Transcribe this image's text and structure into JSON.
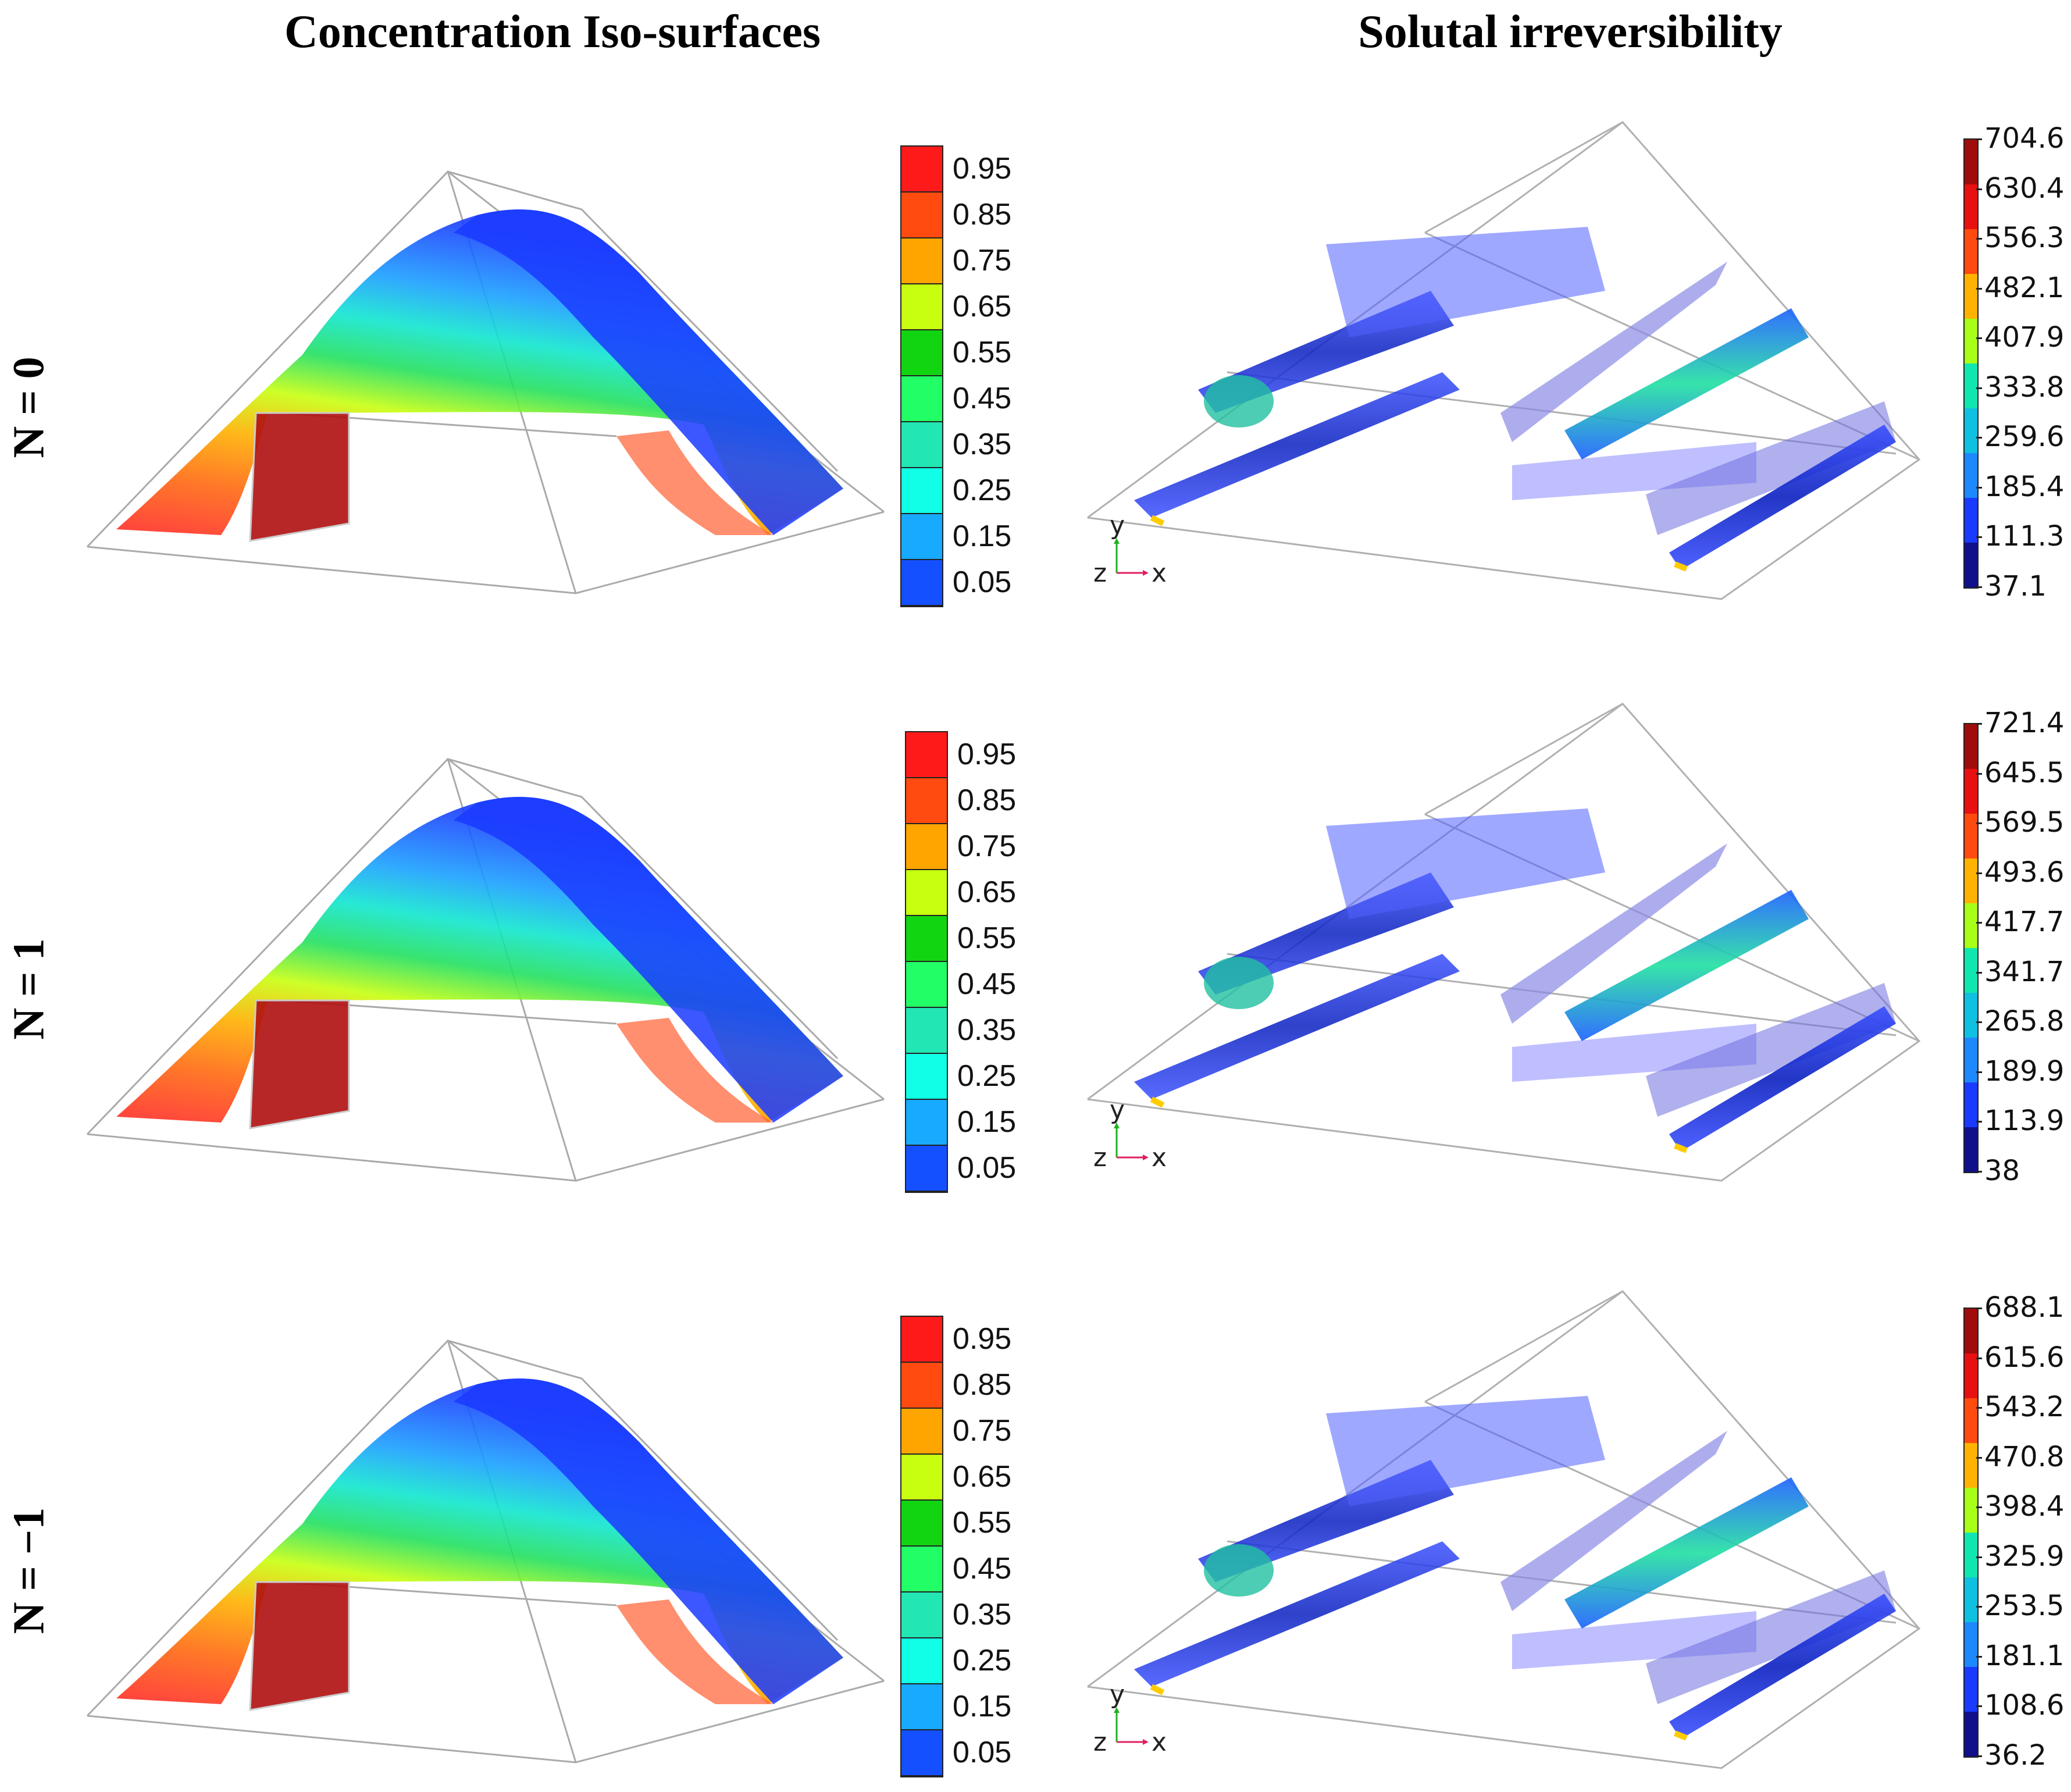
{
  "titles": {
    "left": "Concentration Iso-surfaces",
    "right": "Solutal irreversibility"
  },
  "rows": [
    {
      "label": "N = 0"
    },
    {
      "label": "N = 1"
    },
    {
      "label": "N = −1"
    }
  ],
  "concentration_colorbar": {
    "labels": [
      "0.95",
      "0.85",
      "0.75",
      "0.65",
      "0.55",
      "0.45",
      "0.35",
      "0.25",
      "0.15",
      "0.05"
    ],
    "colors": [
      "#ff1a1a",
      "#ff4a10",
      "#ffa500",
      "#c8ff10",
      "#12d512",
      "#22ff66",
      "#22e6b3",
      "#10ffe6",
      "#18aaff",
      "#1450ff",
      "#0a1aff"
    ]
  },
  "irreversibility_colorbars": [
    {
      "labels": [
        "704.6",
        "630.4",
        "556.3",
        "482.1",
        "407.9",
        "333.8",
        "259.6",
        "185.4",
        "111.3",
        "37.1"
      ]
    },
    {
      "labels": [
        "721.4",
        "645.5",
        "569.5",
        "493.6",
        "417.7",
        "341.7",
        "265.8",
        "189.9",
        "113.9",
        "38"
      ]
    },
    {
      "labels": [
        "688.1",
        "615.6",
        "543.2",
        "470.8",
        "398.4",
        "325.9",
        "253.5",
        "181.1",
        "108.6",
        "36.2"
      ]
    }
  ],
  "irreversibility_colors": [
    "#a00c0c",
    "#e81010",
    "#ff4a10",
    "#ffb300",
    "#a8ff18",
    "#10e6b0",
    "#10c0e0",
    "#1e88ff",
    "#1a3aff",
    "#10108a"
  ],
  "axis_indicator": {
    "y": "y",
    "z": "z",
    "x": "x"
  }
}
